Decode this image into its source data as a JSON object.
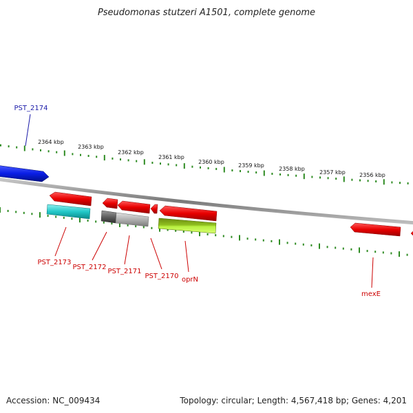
{
  "title": "Pseudomonas stutzeri A1501, complete genome",
  "footer": {
    "accession": "Accession: NC_009434",
    "summary": "Topology: circular; Length: 4,567,418 bp; Genes: 4,201"
  },
  "colors": {
    "backbone": "#8a8a8a",
    "tick": "#2e8b22",
    "plus_strand_gene": "#0a1ee6",
    "minus_strand_gene": "#e80000",
    "feature_cyan": "#22c8c8",
    "feature_gray": "#b0b0b0",
    "feature_lime": "#a8e830",
    "label_blue": "#1a1aa8",
    "label_red": "#cc0000"
  },
  "ruler": {
    "tick_labels": [
      "2364 kbp",
      "2363 kbp",
      "2362 kbp",
      "2361 kbp",
      "2360 kbp",
      "2359 kbp",
      "2358 kbp",
      "2357 kbp",
      "2356 kbp"
    ]
  },
  "genes": [
    {
      "name": "PST_2174",
      "color_key": "label_blue"
    },
    {
      "name": "PST_2173",
      "color_key": "label_red"
    },
    {
      "name": "PST_2172",
      "color_key": "label_red"
    },
    {
      "name": "PST_2171",
      "color_key": "label_red"
    },
    {
      "name": "PST_2170",
      "color_key": "label_red"
    },
    {
      "name": "oprN",
      "color_key": "label_red"
    },
    {
      "name": "mexE",
      "color_key": "label_red"
    }
  ]
}
